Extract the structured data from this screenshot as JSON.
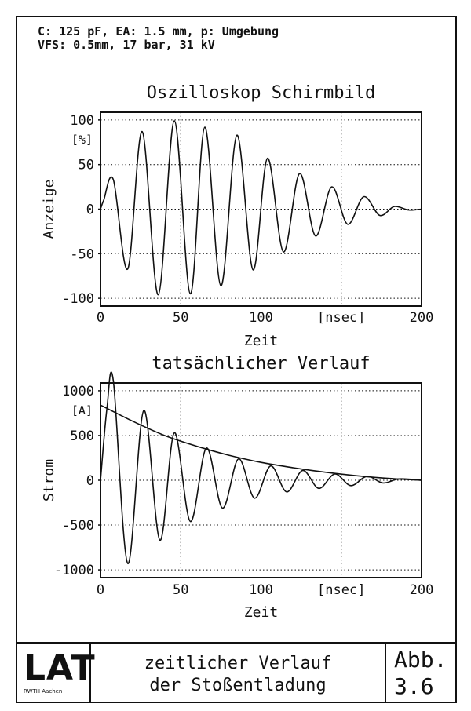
{
  "header": {
    "line1": "C: 125 pF, EA: 1.5 mm, p: Umgebung",
    "line2": "VFS: 0.5mm, 17 bar, 31 kV"
  },
  "chart_data": [
    {
      "type": "line",
      "title": "Oszilloskop Schirmbild",
      "xlabel": "Zeit",
      "ylabel": "Anzeige",
      "yunit": "[%]",
      "xunit": "[nsec]",
      "xlim": [
        0,
        200
      ],
      "ylim": [
        -100,
        100
      ],
      "xticks": [
        0,
        50,
        100,
        150,
        200
      ],
      "xtick_labels": [
        "0",
        "50",
        "100",
        "[nsec]",
        "200"
      ],
      "yticks": [
        100,
        50,
        0,
        -50,
        -100
      ],
      "ytick_labels": [
        "100",
        "50",
        "0",
        "-50",
        "-100"
      ],
      "grid": true,
      "series": [
        {
          "name": "Anzeige",
          "x": [
            0,
            2,
            8,
            17,
            26,
            36,
            46,
            56,
            65,
            75,
            85,
            95,
            104,
            114,
            124,
            134,
            144,
            154,
            164,
            174,
            183,
            192,
            200
          ],
          "y": [
            0,
            10,
            33,
            -67,
            87,
            -96,
            99,
            -95,
            92,
            -86,
            83,
            -68,
            57,
            -48,
            40,
            -30,
            25,
            -17,
            14,
            -7,
            3,
            -1,
            0
          ]
        }
      ]
    },
    {
      "type": "line",
      "title": "tatsächlicher Verlauf",
      "xlabel": "Zeit",
      "ylabel": "Strom",
      "yunit": "[A]",
      "xunit": "[nsec]",
      "xlim": [
        0,
        200
      ],
      "ylim": [
        -1000,
        1000
      ],
      "xticks": [
        0,
        50,
        100,
        150,
        200
      ],
      "xtick_labels": [
        "0",
        "50",
        "100",
        "[nsec]",
        "200"
      ],
      "yticks": [
        1000,
        500,
        0,
        -500,
        -1000
      ],
      "ytick_labels": [
        "1000",
        "500",
        "0",
        "-500",
        "-1000"
      ],
      "grid": true,
      "series": [
        {
          "name": "Strom",
          "x": [
            0,
            4,
            8,
            17,
            27,
            37,
            46,
            56,
            66,
            76,
            86,
            96,
            106,
            116,
            126,
            136,
            146,
            156,
            166,
            176,
            186,
            200
          ],
          "y": [
            0,
            800,
            1110,
            -930,
            780,
            -670,
            530,
            -460,
            360,
            -310,
            240,
            -200,
            160,
            -130,
            110,
            -90,
            70,
            -60,
            45,
            -30,
            15,
            0
          ]
        },
        {
          "name": "Einhüllende",
          "x": [
            0,
            20,
            40,
            60,
            80,
            100,
            120,
            140,
            160,
            180,
            200
          ],
          "y": [
            840,
            660,
            500,
            380,
            280,
            200,
            140,
            90,
            50,
            20,
            0
          ]
        }
      ]
    }
  ],
  "footer": {
    "logo": "LAT",
    "logo_sub": "RWTH Aachen",
    "caption_line1": "zeitlicher Verlauf",
    "caption_line2": "der Stoßentladung",
    "fig_label": "Abb.",
    "fig_number": "3.6"
  }
}
